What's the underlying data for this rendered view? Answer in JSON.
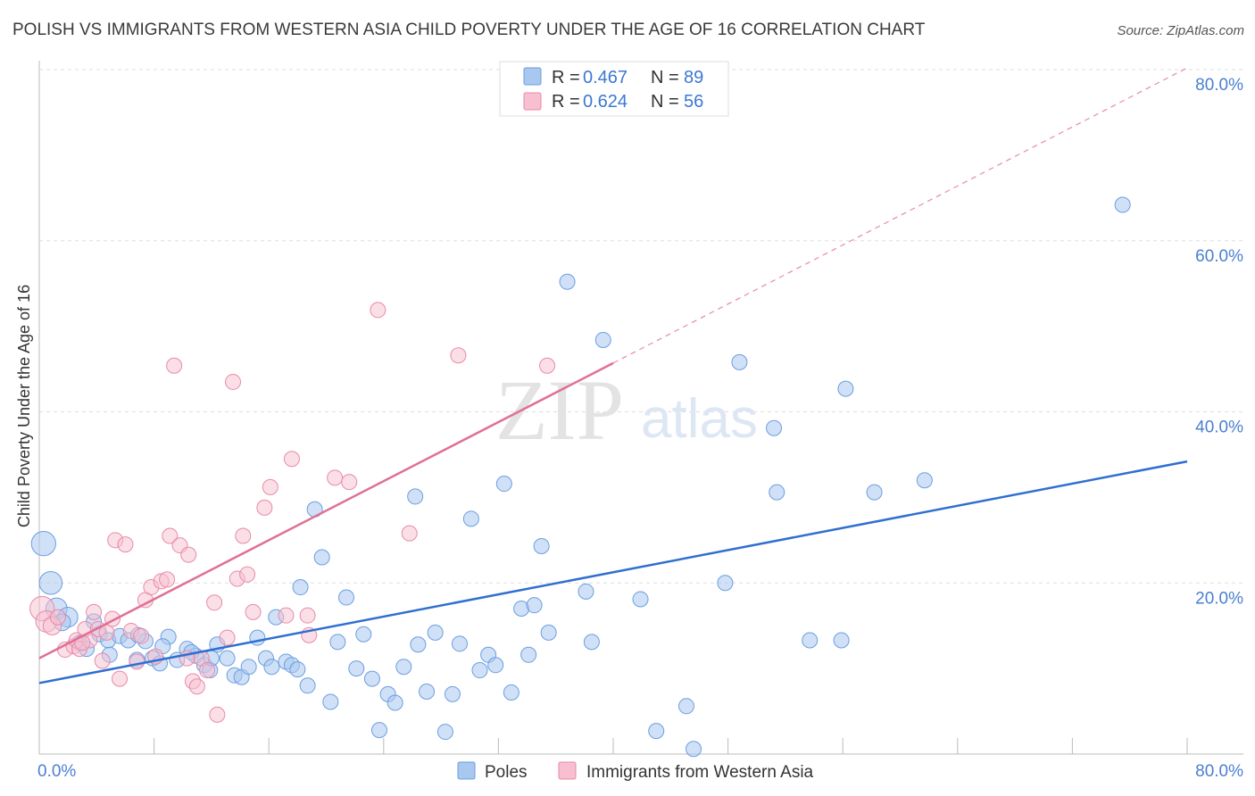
{
  "title": "POLISH VS IMMIGRANTS FROM WESTERN ASIA CHILD POVERTY UNDER THE AGE OF 16 CORRELATION CHART",
  "source": "Source: ZipAtlas.com",
  "watermark": {
    "zip": "ZIP",
    "atlas": "atlas"
  },
  "legend": {
    "rows": [
      {
        "r_label": "R = ",
        "r_value": "0.467",
        "n_label": "N = ",
        "n_value": "89"
      },
      {
        "r_label": "R = ",
        "r_value": "0.624",
        "n_label": "N = ",
        "n_value": "56"
      }
    ]
  },
  "bottom_legend": [
    "Poles",
    "Immigrants from Western Asia"
  ],
  "colors": {
    "poles_fill": "#a9c8f0",
    "poles_stroke": "#6b9ee0",
    "poles_line": "#2f6fd0",
    "immig_fill": "#f7bfd0",
    "immig_stroke": "#e88aa8",
    "immig_line": "#e07095",
    "tick_text": "#4a7fd0",
    "grid": "#dddddd"
  },
  "chart_data": {
    "type": "scatter",
    "title": "POLISH VS IMMIGRANTS FROM WESTERN ASIA CHILD POVERTY UNDER THE AGE OF 16 CORRELATION CHART",
    "xlabel": "",
    "ylabel": "Child Poverty Under the Age of 16",
    "xlim": [
      0,
      80
    ],
    "ylim": [
      0,
      80
    ],
    "x_ticks": [
      "0.0%",
      "80.0%"
    ],
    "y_ticks": [
      "20.0%",
      "40.0%",
      "60.0%",
      "80.0%"
    ],
    "y_tick_values": [
      20,
      40,
      60,
      80
    ],
    "grid": true,
    "legend_position": "top-center",
    "series": [
      {
        "name": "Poles",
        "R": 0.467,
        "N": 89,
        "trend": [
          [
            0,
            8.3
          ],
          [
            80,
            34.2
          ]
        ],
        "points": [
          [
            0.3,
            24.6,
            1.6
          ],
          [
            0.8,
            20.0,
            1.5
          ],
          [
            1.2,
            17.0,
            1.4
          ],
          [
            2.0,
            16.0,
            1.3
          ],
          [
            1.6,
            15.4,
            1.1
          ],
          [
            2.8,
            13.0,
            1.0
          ],
          [
            3.3,
            12.3,
            1.0
          ],
          [
            3.8,
            15.5,
            1.0
          ],
          [
            4.2,
            14.0,
            1.0
          ],
          [
            4.8,
            13.3,
            1.0
          ],
          [
            5.6,
            13.8,
            1.0
          ],
          [
            6.2,
            13.3,
            1.0
          ],
          [
            6.8,
            11.0,
            1.0
          ],
          [
            7.4,
            13.2,
            1.0
          ],
          [
            7.9,
            11.2,
            1.0
          ],
          [
            8.4,
            10.6,
            1.0
          ],
          [
            9.0,
            13.7,
            1.0
          ],
          [
            9.6,
            11.0,
            1.0
          ],
          [
            10.3,
            12.3,
            1.0
          ],
          [
            10.9,
            11.5,
            1.0
          ],
          [
            11.5,
            10.4,
            1.0
          ],
          [
            11.9,
            9.8,
            1.0
          ],
          [
            12.4,
            12.8,
            1.0
          ],
          [
            13.1,
            11.2,
            1.0
          ],
          [
            13.6,
            9.2,
            1.0
          ],
          [
            14.1,
            9.0,
            1.0
          ],
          [
            14.6,
            10.2,
            1.0
          ],
          [
            15.2,
            13.6,
            1.0
          ],
          [
            15.8,
            11.2,
            1.0
          ],
          [
            16.2,
            10.2,
            1.0
          ],
          [
            16.5,
            16.0,
            1.0
          ],
          [
            17.2,
            10.8,
            1.0
          ],
          [
            17.6,
            10.4,
            1.0
          ],
          [
            18.2,
            19.5,
            1.0
          ],
          [
            18.7,
            8.0,
            1.0
          ],
          [
            19.2,
            28.6,
            1.0
          ],
          [
            19.7,
            23.0,
            1.0
          ],
          [
            20.3,
            6.1,
            1.0
          ],
          [
            20.8,
            13.1,
            1.0
          ],
          [
            21.4,
            18.3,
            1.0
          ],
          [
            22.1,
            10.0,
            1.0
          ],
          [
            22.6,
            14.0,
            1.0
          ],
          [
            23.2,
            8.8,
            1.0
          ],
          [
            23.7,
            2.8,
            1.0
          ],
          [
            24.3,
            7.0,
            1.0
          ],
          [
            24.8,
            6.0,
            1.0
          ],
          [
            25.4,
            10.2,
            1.0
          ],
          [
            26.2,
            30.1,
            1.0
          ],
          [
            26.4,
            12.8,
            1.0
          ],
          [
            27.0,
            7.3,
            1.0
          ],
          [
            27.6,
            14.2,
            1.0
          ],
          [
            28.3,
            2.6,
            1.0
          ],
          [
            28.8,
            7.0,
            1.0
          ],
          [
            29.3,
            12.9,
            1.0
          ],
          [
            30.1,
            27.5,
            1.0
          ],
          [
            30.7,
            9.8,
            1.0
          ],
          [
            31.3,
            11.6,
            1.0
          ],
          [
            31.8,
            10.4,
            1.0
          ],
          [
            32.4,
            31.6,
            1.0
          ],
          [
            32.9,
            7.2,
            1.0
          ],
          [
            33.6,
            17.0,
            1.0
          ],
          [
            34.1,
            11.6,
            1.0
          ],
          [
            34.5,
            17.4,
            1.0
          ],
          [
            35.0,
            24.3,
            1.0
          ],
          [
            35.5,
            14.2,
            1.0
          ],
          [
            36.8,
            55.2,
            1.0
          ],
          [
            38.1,
            19.0,
            1.0
          ],
          [
            38.5,
            13.1,
            1.0
          ],
          [
            39.3,
            48.4,
            1.0
          ],
          [
            41.9,
            18.1,
            1.0
          ],
          [
            43.0,
            2.7,
            1.0
          ],
          [
            45.1,
            5.6,
            1.0
          ],
          [
            45.6,
            0.6,
            1.0
          ],
          [
            47.8,
            20.0,
            1.0
          ],
          [
            48.8,
            45.8,
            1.0
          ],
          [
            51.2,
            38.1,
            1.0
          ],
          [
            51.4,
            30.6,
            1.0
          ],
          [
            53.7,
            13.3,
            1.0
          ],
          [
            55.9,
            13.3,
            1.0
          ],
          [
            56.2,
            42.7,
            1.0
          ],
          [
            58.2,
            30.6,
            1.0
          ],
          [
            61.7,
            32.0,
            1.0
          ],
          [
            75.5,
            64.2,
            1.0
          ],
          [
            4.9,
            11.6,
            1.0
          ],
          [
            6.9,
            13.9,
            1.0
          ],
          [
            8.6,
            12.6,
            1.0
          ],
          [
            10.6,
            11.9,
            1.0
          ],
          [
            12.0,
            11.2,
            1.0
          ],
          [
            18.0,
            9.9,
            1.0
          ]
        ]
      },
      {
        "name": "Immigrants from Western Asia",
        "R": 0.624,
        "N": 56,
        "trend": [
          [
            0,
            11.2
          ],
          [
            40,
            45.7
          ]
        ],
        "trend_dashed": [
          [
            40,
            45.7
          ],
          [
            80,
            80.2
          ]
        ],
        "points": [
          [
            0.2,
            17.0,
            1.6
          ],
          [
            0.5,
            15.5,
            1.4
          ],
          [
            0.9,
            15.0,
            1.2
          ],
          [
            1.3,
            16.0,
            1.0
          ],
          [
            1.8,
            12.2,
            1.0
          ],
          [
            2.4,
            12.6,
            1.0
          ],
          [
            2.6,
            13.3,
            1.0
          ],
          [
            2.8,
            12.3,
            1.0
          ],
          [
            3.2,
            14.6,
            1.0
          ],
          [
            3.5,
            13.3,
            1.0
          ],
          [
            3.8,
            16.6,
            1.0
          ],
          [
            4.1,
            14.6,
            1.0
          ],
          [
            4.4,
            10.9,
            1.0
          ],
          [
            4.7,
            14.2,
            1.0
          ],
          [
            5.1,
            15.8,
            1.0
          ],
          [
            5.3,
            25.0,
            1.0
          ],
          [
            5.6,
            8.8,
            1.0
          ],
          [
            6.0,
            24.5,
            1.0
          ],
          [
            6.4,
            14.4,
            1.0
          ],
          [
            6.8,
            10.8,
            1.0
          ],
          [
            7.1,
            13.8,
            1.0
          ],
          [
            7.4,
            18.0,
            1.0
          ],
          [
            7.8,
            19.5,
            1.0
          ],
          [
            8.1,
            11.4,
            1.0
          ],
          [
            8.5,
            20.2,
            1.0
          ],
          [
            8.9,
            20.4,
            1.0
          ],
          [
            9.1,
            25.5,
            1.0
          ],
          [
            9.4,
            45.4,
            1.0
          ],
          [
            9.8,
            24.4,
            1.0
          ],
          [
            10.3,
            11.2,
            1.0
          ],
          [
            10.4,
            23.3,
            1.0
          ],
          [
            10.7,
            8.5,
            1.0
          ],
          [
            11.0,
            7.9,
            1.0
          ],
          [
            11.3,
            11.2,
            1.0
          ],
          [
            11.7,
            9.8,
            1.0
          ],
          [
            12.2,
            17.7,
            1.0
          ],
          [
            12.4,
            4.6,
            1.0
          ],
          [
            13.1,
            13.6,
            1.0
          ],
          [
            13.5,
            43.5,
            1.0
          ],
          [
            13.8,
            20.5,
            1.0
          ],
          [
            14.2,
            25.5,
            1.0
          ],
          [
            14.5,
            21.0,
            1.0
          ],
          [
            14.9,
            16.6,
            1.0
          ],
          [
            15.7,
            28.8,
            1.0
          ],
          [
            16.1,
            31.2,
            1.0
          ],
          [
            17.2,
            16.2,
            1.0
          ],
          [
            17.6,
            34.5,
            1.0
          ],
          [
            18.7,
            16.2,
            1.0
          ],
          [
            18.8,
            13.9,
            1.0
          ],
          [
            20.6,
            32.3,
            1.0
          ],
          [
            21.6,
            31.8,
            1.0
          ],
          [
            23.6,
            51.9,
            1.0
          ],
          [
            25.8,
            25.8,
            1.0
          ],
          [
            29.2,
            46.6,
            1.0
          ],
          [
            35.4,
            45.4,
            1.0
          ],
          [
            3.0,
            13.0,
            1.0
          ]
        ]
      }
    ]
  }
}
